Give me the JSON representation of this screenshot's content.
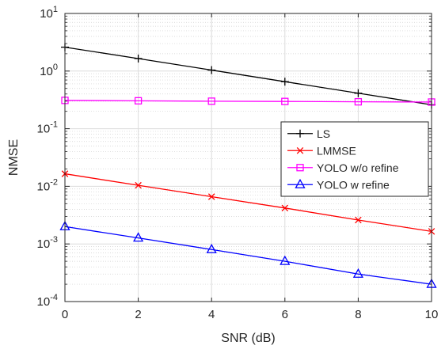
{
  "chart_data": {
    "type": "line",
    "xlabel": "SNR (dB)",
    "ylabel": "NMSE",
    "xlim": [
      0,
      10
    ],
    "ylim": [
      0.0001,
      10
    ],
    "yscale": "log",
    "grid": true,
    "minor_grid": true,
    "legend_position": "right",
    "x_ticks": [
      "0",
      "2",
      "4",
      "6",
      "8",
      "10"
    ],
    "y_ticks": [
      {
        "base": "10",
        "exp": "-4"
      },
      {
        "base": "10",
        "exp": "-3"
      },
      {
        "base": "10",
        "exp": "-2"
      },
      {
        "base": "10",
        "exp": "-1"
      },
      {
        "base": "10",
        "exp": "0"
      },
      {
        "base": "10",
        "exp": "1"
      }
    ],
    "x": [
      0,
      2,
      4,
      6,
      8,
      10
    ],
    "series": [
      {
        "name": "LS",
        "color": "#000000",
        "marker": "plus",
        "values": [
          2.6,
          1.65,
          1.04,
          0.655,
          0.413,
          0.26
        ]
      },
      {
        "name": "LMMSE",
        "color": "#ff0000",
        "marker": "x",
        "values": [
          0.0165,
          0.0104,
          0.0066,
          0.0042,
          0.0026,
          0.00165
        ]
      },
      {
        "name": "YOLO w/o refine",
        "color": "#ff00ff",
        "marker": "square",
        "values": [
          0.31,
          0.305,
          0.3,
          0.297,
          0.293,
          0.29
        ]
      },
      {
        "name": "YOLO w refine",
        "color": "#0000ff",
        "marker": "triangle",
        "values": [
          0.002,
          0.00127,
          0.0008,
          0.0005,
          0.0003,
          0.0002
        ]
      }
    ]
  }
}
